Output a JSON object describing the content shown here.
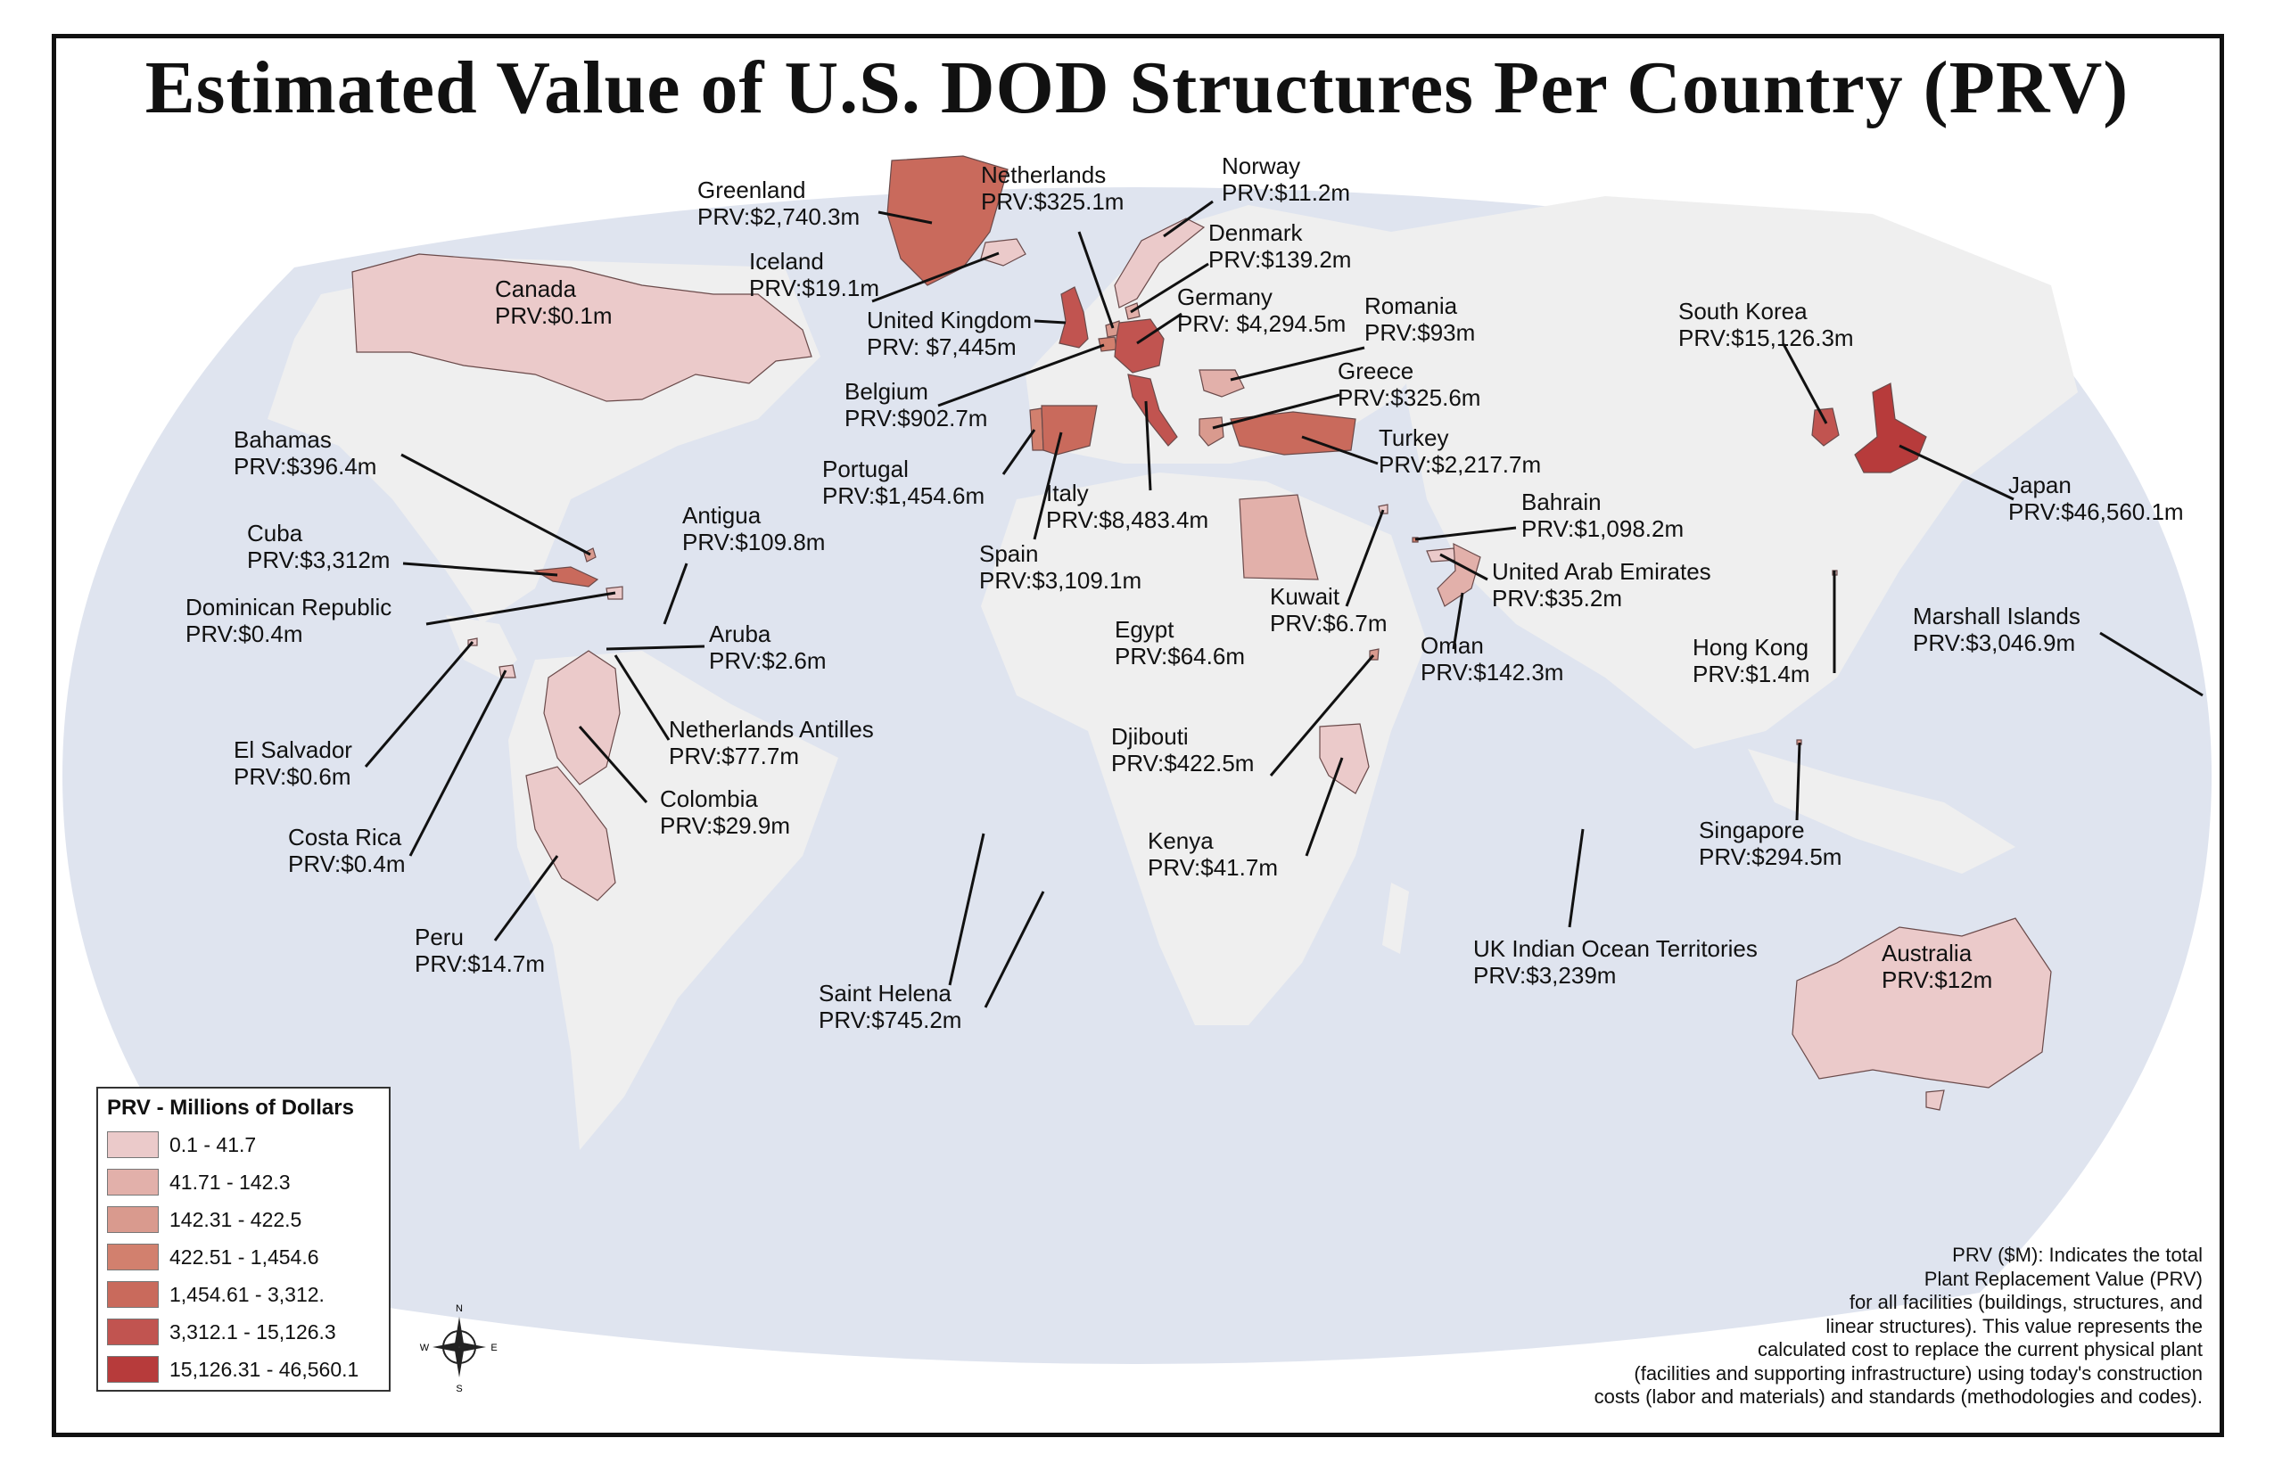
{
  "title": "Estimated Value of U.S. DOD Structures Per Country (PRV)",
  "colors": {
    "ocean": "#dfe4ef",
    "land": "#efefef",
    "class_colors": [
      "#ebcaca",
      "#e2b0aa",
      "#d99a8e",
      "#d2806e",
      "#c96a5c",
      "#c15450",
      "#b73b3b"
    ]
  },
  "countries": [
    {
      "key": "greenland",
      "name": "Greenland",
      "value": "PRV:$2,740.3m",
      "class": 5
    },
    {
      "key": "netherlands",
      "name": "Netherlands",
      "value": "PRV:$325.1m",
      "class": 3
    },
    {
      "key": "norway",
      "name": "Norway",
      "value": "PRV:$11.2m",
      "class": 1
    },
    {
      "key": "denmark",
      "name": "Denmark",
      "value": "PRV:$139.2m",
      "class": 2
    },
    {
      "key": "iceland",
      "name": "Iceland",
      "value": "PRV:$19.1m",
      "class": 1
    },
    {
      "key": "canada",
      "name": "Canada",
      "value": "PRV:$0.1m",
      "class": 1
    },
    {
      "key": "united_kingdom",
      "name": "United Kingdom",
      "value": "PRV: $7,445m",
      "class": 6
    },
    {
      "key": "germany",
      "name": "Germany",
      "value": "PRV: $4,294.5m",
      "class": 6
    },
    {
      "key": "romania",
      "name": "Romania",
      "value": "PRV:$93m",
      "class": 2
    },
    {
      "key": "south_korea",
      "name": "South Korea",
      "value": "PRV:$15,126.3m",
      "class": 6
    },
    {
      "key": "belgium",
      "name": "Belgium",
      "value": "PRV:$902.7m",
      "class": 4
    },
    {
      "key": "greece",
      "name": "Greece",
      "value": "PRV:$325.6m",
      "class": 3
    },
    {
      "key": "portugal",
      "name": "Portugal",
      "value": "PRV:$1,454.6m",
      "class": 4
    },
    {
      "key": "turkey",
      "name": "Turkey",
      "value": "PRV:$2,217.7m",
      "class": 5
    },
    {
      "key": "bahamas",
      "name": "Bahamas",
      "value": "PRV:$396.4m",
      "class": 3
    },
    {
      "key": "italy",
      "name": "Italy",
      "value": "PRV:$8,483.4m",
      "class": 6
    },
    {
      "key": "japan",
      "name": "Japan",
      "value": "PRV:$46,560.1m",
      "class": 7
    },
    {
      "key": "cuba",
      "name": "Cuba",
      "value": "PRV:$3,312m",
      "class": 5
    },
    {
      "key": "antigua",
      "name": "Antigua",
      "value": "PRV:$109.8m",
      "class": 2
    },
    {
      "key": "spain",
      "name": "Spain",
      "value": "PRV:$3,109.1m",
      "class": 5
    },
    {
      "key": "bahrain",
      "name": "Bahrain",
      "value": "PRV:$1,098.2m",
      "class": 4
    },
    {
      "key": "uae",
      "name": "United Arab Emirates",
      "value": "PRV:$35.2m",
      "class": 1
    },
    {
      "key": "dominican_republic",
      "name": "Dominican Republic",
      "value": "PRV:$0.4m",
      "class": 1
    },
    {
      "key": "kuwait",
      "name": "Kuwait",
      "value": "PRV:$6.7m",
      "class": 1
    },
    {
      "key": "aruba",
      "name": "Aruba",
      "value": "PRV:$2.6m",
      "class": 1
    },
    {
      "key": "egypt",
      "name": "Egypt",
      "value": "PRV:$64.6m",
      "class": 2
    },
    {
      "key": "oman",
      "name": "Oman",
      "value": "PRV:$142.3m",
      "class": 2
    },
    {
      "key": "hong_kong",
      "name": "Hong Kong",
      "value": "PRV:$1.4m",
      "class": 1
    },
    {
      "key": "marshall_islands",
      "name": "Marshall Islands",
      "value": "PRV:$3,046.9m",
      "class": 5
    },
    {
      "key": "netherlands_antilles",
      "name": "Netherlands Antilles",
      "value": "PRV:$77.7m",
      "class": 2
    },
    {
      "key": "el_salvador",
      "name": "El Salvador",
      "value": "PRV:$0.6m",
      "class": 1
    },
    {
      "key": "djibouti",
      "name": "Djibouti",
      "value": "PRV:$422.5m",
      "class": 3
    },
    {
      "key": "colombia",
      "name": "Colombia",
      "value": "PRV:$29.9m",
      "class": 1
    },
    {
      "key": "costa_rica",
      "name": "Costa Rica",
      "value": "PRV:$0.4m",
      "class": 1
    },
    {
      "key": "kenya",
      "name": "Kenya",
      "value": "PRV:$41.7m",
      "class": 1
    },
    {
      "key": "singapore",
      "name": "Singapore",
      "value": "PRV:$294.5m",
      "class": 3
    },
    {
      "key": "peru",
      "name": "Peru",
      "value": "PRV:$14.7m",
      "class": 1
    },
    {
      "key": "uk_indian_ocean",
      "name": "UK Indian Ocean Territories",
      "value": "PRV:$3,239m",
      "class": 5
    },
    {
      "key": "australia",
      "name": "Australia",
      "value": "PRV:$12m",
      "class": 1
    },
    {
      "key": "saint_helena",
      "name": "Saint Helena",
      "value": "PRV:$745.2m",
      "class": 4
    }
  ],
  "legend": {
    "title": "PRV - Millions of Dollars",
    "items": [
      "0.1 - 41.7",
      "41.71 - 142.3",
      "142.31 - 422.5",
      "422.51 - 1,454.6",
      "1,454.61 - 3,312.",
      "3,312.1 - 15,126.3",
      "15,126.31 - 46,560.1"
    ]
  },
  "note": [
    "PRV ($M): Indicates the total",
    "Plant Replacement Value (PRV)",
    "for all facilities (buildings, structures, and",
    "linear structures). This value represents the",
    "calculated cost to replace the current physical plant",
    "(facilities and supporting infrastructure) using today's construction",
    "costs (labor and materials) and standards (methodologies and codes)."
  ],
  "compass": {
    "n": "N",
    "s": "S",
    "e": "E",
    "w": "W"
  }
}
